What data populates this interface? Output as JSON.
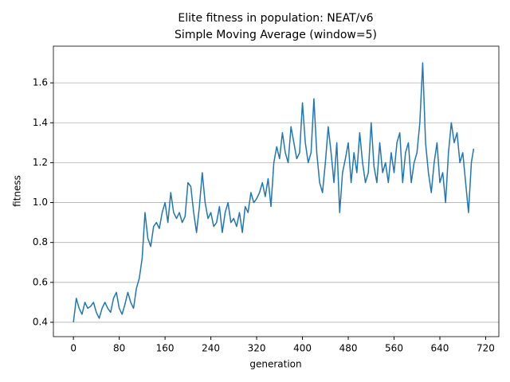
{
  "chart_data": {
    "type": "line",
    "title": "Elite fitness in population: NEAT/v6",
    "subtitle": "Simple Moving Average (window=5)",
    "x_label": "generation",
    "y_label": "fitness",
    "color": "#1f77b4",
    "grid": true,
    "x": [
      0,
      5,
      10,
      15,
      20,
      25,
      30,
      35,
      40,
      45,
      50,
      55,
      60,
      65,
      70,
      75,
      80,
      85,
      90,
      95,
      100,
      105,
      110,
      115,
      120,
      125,
      130,
      135,
      140,
      145,
      150,
      155,
      160,
      165,
      170,
      175,
      180,
      185,
      190,
      195,
      200,
      205,
      210,
      215,
      220,
      225,
      230,
      235,
      240,
      245,
      250,
      255,
      260,
      265,
      270,
      275,
      280,
      285,
      290,
      295,
      300,
      305,
      310,
      315,
      320,
      325,
      330,
      335,
      340,
      345,
      350,
      355,
      360,
      365,
      370,
      375,
      380,
      385,
      390,
      395,
      400,
      405,
      410,
      415,
      420,
      425,
      430,
      435,
      440,
      445,
      450,
      455,
      460,
      465,
      470,
      475,
      480,
      485,
      490,
      495,
      500,
      505,
      510,
      515,
      520,
      525,
      530,
      535,
      540,
      545,
      550,
      555,
      560,
      565,
      570,
      575,
      580,
      585,
      590,
      595,
      600,
      605,
      610,
      615,
      620,
      625,
      630,
      635,
      640,
      645,
      650,
      655,
      660,
      665,
      670,
      675,
      680,
      685,
      690,
      695,
      699
    ],
    "values": [
      0.4,
      0.52,
      0.47,
      0.44,
      0.5,
      0.47,
      0.48,
      0.5,
      0.45,
      0.42,
      0.47,
      0.5,
      0.47,
      0.45,
      0.52,
      0.55,
      0.47,
      0.44,
      0.49,
      0.55,
      0.5,
      0.47,
      0.57,
      0.62,
      0.72,
      0.95,
      0.82,
      0.78,
      0.88,
      0.9,
      0.87,
      0.95,
      1.0,
      0.9,
      1.05,
      0.95,
      0.92,
      0.95,
      0.9,
      0.93,
      1.1,
      1.08,
      0.95,
      0.85,
      0.98,
      1.15,
      1.0,
      0.92,
      0.95,
      0.88,
      0.9,
      0.98,
      0.85,
      0.95,
      1.0,
      0.9,
      0.92,
      0.88,
      0.95,
      0.85,
      0.98,
      0.95,
      1.05,
      1.0,
      1.02,
      1.05,
      1.1,
      1.03,
      1.12,
      0.98,
      1.2,
      1.28,
      1.22,
      1.35,
      1.25,
      1.2,
      1.38,
      1.3,
      1.22,
      1.25,
      1.5,
      1.3,
      1.2,
      1.25,
      1.52,
      1.25,
      1.1,
      1.05,
      1.2,
      1.38,
      1.25,
      1.1,
      1.3,
      0.95,
      1.15,
      1.22,
      1.3,
      1.1,
      1.25,
      1.15,
      1.35,
      1.2,
      1.1,
      1.15,
      1.4,
      1.18,
      1.1,
      1.3,
      1.15,
      1.2,
      1.1,
      1.25,
      1.15,
      1.3,
      1.35,
      1.1,
      1.25,
      1.3,
      1.1,
      1.2,
      1.25,
      1.4,
      1.7,
      1.3,
      1.15,
      1.05,
      1.2,
      1.3,
      1.1,
      1.15,
      1.0,
      1.25,
      1.4,
      1.3,
      1.35,
      1.2,
      1.25,
      1.1,
      0.95,
      1.2,
      1.27
    ],
    "xlim": [
      -35,
      743
    ],
    "xticks": [
      0,
      80,
      160,
      240,
      320,
      400,
      480,
      560,
      640,
      720
    ],
    "ylim": [
      0.328,
      1.784
    ],
    "yticks": [
      0.4,
      0.6,
      0.8,
      {
        "value": 1,
        "label": "1.0"
      },
      1.2,
      1.4,
      1.6
    ]
  }
}
